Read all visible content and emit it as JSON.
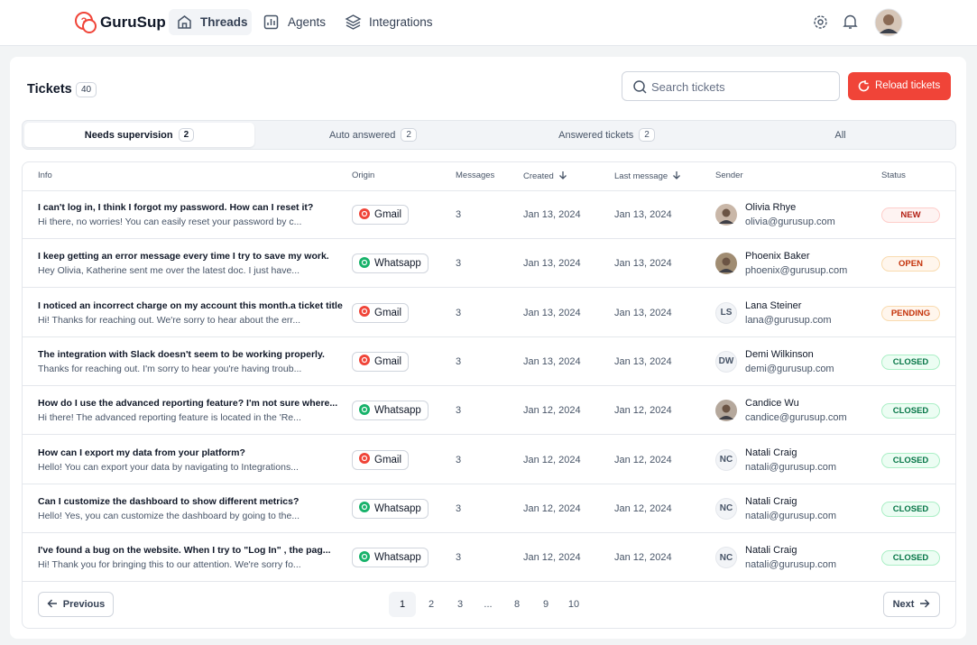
{
  "nav": {
    "brand": "GuruSup",
    "items": [
      "Threads",
      "Agents",
      "Integrations"
    ]
  },
  "header": {
    "title": "Tickets",
    "count": 40,
    "search_placeholder": "Search tickets",
    "reload": "Reload tickets"
  },
  "tabs": [
    {
      "label": "Needs supervision",
      "count": 2
    },
    {
      "label": "Auto answered",
      "count": 2
    },
    {
      "label": "Answered tickets",
      "count": 2
    },
    {
      "label": "All"
    }
  ],
  "origin_colors": {
    "Gmail": "#f04438",
    "Whatsapp": "#17b26a"
  },
  "status_colors": {
    "NEW": [
      "#fef3f2",
      "#fecdca",
      "#b42318"
    ],
    "OPEN": [
      "#fff6ed",
      "#f9dbaf",
      "#c4320a"
    ],
    "PENDING": [
      "#fff6ed",
      "#f9dbaf",
      "#c4320a"
    ],
    "CLOSED": [
      "#ecfdf3",
      "#abefc6",
      "#067647"
    ]
  },
  "table": {
    "columns": [
      "Info",
      "Origin",
      "Messages",
      "Created",
      "Last message",
      "Sender",
      "Status"
    ],
    "rows": [
      {
        "title": "I can't log in, I think I forgot my password. How can I reset it?",
        "preview": "Hi there, no worries! You can easily reset your password by c...",
        "origin": "Gmail",
        "messages": 3,
        "created": "Jan 13, 2024",
        "last_message": "Jan 13, 2024",
        "sender": "Olivia Rhye",
        "email": "olivia@gurusup.com",
        "status": "NEW"
      },
      {
        "title": "I keep getting an error message every time I try to save my work.",
        "preview": "Hey Olivia, Katherine sent me over the latest doc. I just have...",
        "origin": "Whatsapp",
        "messages": 3,
        "created": "Jan 13, 2024",
        "last_message": "Jan 13, 2024",
        "sender": "Phoenix Baker",
        "email": "phoenix@gurusup.com",
        "status": "OPEN"
      },
      {
        "title": "I noticed an incorrect charge on my account this month.a ticket title",
        "preview": "Hi! Thanks for reaching out. We're sorry to hear about the err...",
        "origin": "Gmail",
        "messages": 3,
        "created": "Jan 13, 2024",
        "last_message": "Jan 13, 2024",
        "sender": "Lana Steiner",
        "email": "lana@gurusup.com",
        "initials": "LS",
        "status": "PENDING"
      },
      {
        "title": "The integration with Slack doesn't seem to be working properly.",
        "preview": "Thanks for reaching out. I'm sorry to hear you're having troub...",
        "origin": "Gmail",
        "messages": 3,
        "created": "Jan 13, 2024",
        "last_message": "Jan 13, 2024",
        "sender": "Demi Wilkinson",
        "email": "demi@gurusup.com",
        "initials": "DW",
        "status": "CLOSED"
      },
      {
        "title": "How do I use the advanced reporting feature? I'm not sure where...",
        "preview": "Hi there! The advanced reporting feature is located in the 'Re...",
        "origin": "Whatsapp",
        "messages": 3,
        "created": "Jan 12, 2024",
        "last_message": "Jan 12, 2024",
        "sender": "Candice Wu",
        "email": "candice@gurusup.com",
        "status": "CLOSED"
      },
      {
        "title": "How can I export my data from your platform?",
        "preview": "Hello! You can export your data by navigating to Integrations...",
        "origin": "Gmail",
        "messages": 3,
        "created": "Jan 12, 2024",
        "last_message": "Jan 12, 2024",
        "sender": "Natali Craig",
        "email": "natali@gurusup.com",
        "initials": "NC",
        "status": "CLOSED"
      },
      {
        "title": "Can I customize the dashboard to show different metrics?",
        "preview": "Hello! Yes, you can customize the dashboard by going to the...",
        "origin": "Whatsapp",
        "messages": 3,
        "created": "Jan 12, 2024",
        "last_message": "Jan 12, 2024",
        "sender": "Natali Craig",
        "email": "natali@gurusup.com",
        "initials": "NC",
        "status": "CLOSED"
      },
      {
        "title": "I've found a bug on the website. When I try to \"Log In\" , the pag...",
        "preview": "Hi! Thank you for bringing this to our attention. We're sorry fo...",
        "origin": "Whatsapp",
        "messages": 3,
        "created": "Jan 12, 2024",
        "last_message": "Jan 12, 2024",
        "sender": "Natali Craig",
        "email": "natali@gurusup.com",
        "initials": "NC",
        "status": "CLOSED"
      }
    ]
  },
  "pagination": {
    "previous": "Previous",
    "pages": [
      1,
      2,
      3,
      "...",
      8,
      9,
      10
    ],
    "next": "Next"
  }
}
